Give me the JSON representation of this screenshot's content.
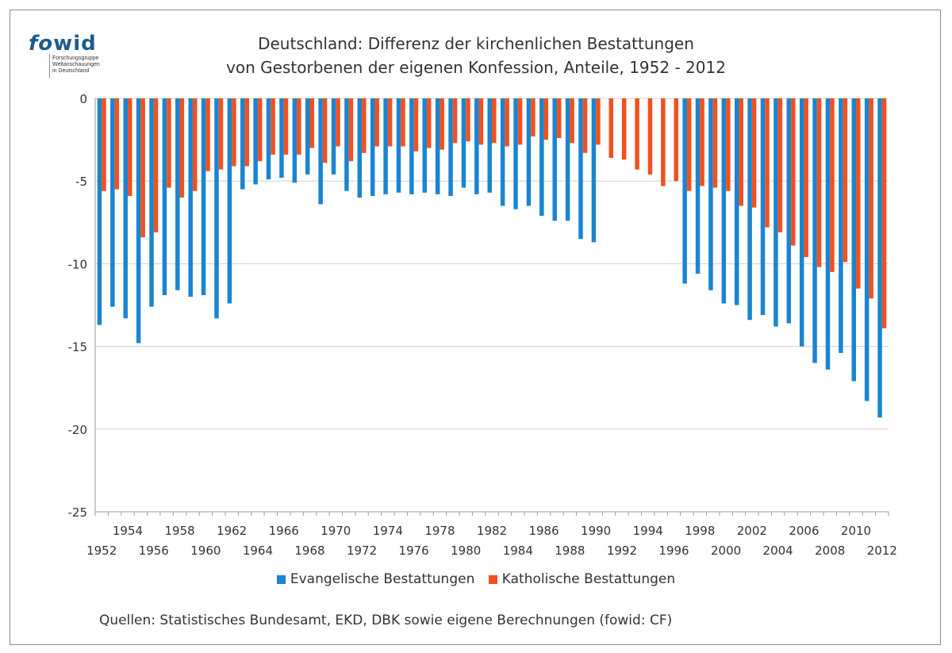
{
  "logo": {
    "word_part1": "fo",
    "word_part2": "wid",
    "subtitle": [
      "Forschungsgruppe",
      "Weltanschauungen",
      "in Deutschland"
    ]
  },
  "chart_data": {
    "type": "bar",
    "title": [
      "Deutschland: Differenz der kirchenlichen Bestattungen",
      "von Gestorbenen der eigenen Konfession, Anteile, 1952 - 2012"
    ],
    "xlabel": "",
    "ylabel": "",
    "ylim": [
      -25,
      0
    ],
    "yticks": [
      0,
      -5,
      -10,
      -15,
      -20,
      -25
    ],
    "grid": true,
    "legend_position": "bottom",
    "categories": [
      1952,
      1953,
      1954,
      1955,
      1956,
      1957,
      1958,
      1959,
      1960,
      1961,
      1962,
      1963,
      1964,
      1965,
      1966,
      1967,
      1968,
      1969,
      1970,
      1971,
      1972,
      1973,
      1974,
      1975,
      1976,
      1977,
      1978,
      1979,
      1980,
      1981,
      1982,
      1983,
      1984,
      1985,
      1986,
      1987,
      1988,
      1989,
      1990,
      1991,
      1992,
      1993,
      1994,
      1995,
      1996,
      1997,
      1998,
      1999,
      2000,
      2001,
      2002,
      2003,
      2004,
      2005,
      2006,
      2007,
      2008,
      2009,
      2010,
      2011,
      2012
    ],
    "series": [
      {
        "name": "Evangelische Bestattungen",
        "color": "#1a85d0",
        "values": [
          -13.7,
          -12.6,
          -13.3,
          -14.8,
          -12.6,
          -11.9,
          -11.6,
          -12.0,
          -11.9,
          -13.3,
          -12.4,
          -5.5,
          -5.2,
          -4.9,
          -4.8,
          -5.1,
          -4.6,
          -6.4,
          -4.6,
          -5.6,
          -6.0,
          -5.9,
          -5.8,
          -5.7,
          -5.8,
          -5.7,
          -5.8,
          -5.9,
          -5.4,
          -5.8,
          -5.7,
          -6.5,
          -6.7,
          -6.5,
          -7.1,
          -7.4,
          -7.4,
          -8.5,
          -8.7,
          null,
          null,
          null,
          null,
          null,
          null,
          -11.2,
          -10.6,
          -11.6,
          -12.4,
          -12.5,
          -13.4,
          -13.1,
          -13.8,
          -13.6,
          -15.0,
          -16.0,
          -16.4,
          -15.4,
          -17.1,
          -18.3,
          -19.3
        ]
      },
      {
        "name": "Katholische Bestattungen",
        "color": "#f2501f",
        "values": [
          -5.6,
          -5.5,
          -5.9,
          -8.4,
          -8.1,
          -5.4,
          -6.0,
          -5.6,
          -4.4,
          -4.3,
          -4.1,
          -4.1,
          -3.8,
          -3.4,
          -3.4,
          -3.4,
          -3.0,
          -3.9,
          -2.9,
          -3.8,
          -3.3,
          -2.9,
          -2.9,
          -2.9,
          -3.2,
          -3.0,
          -3.1,
          -2.7,
          -2.6,
          -2.8,
          -2.7,
          -2.9,
          -2.8,
          -2.3,
          -2.5,
          -2.4,
          -2.7,
          -3.3,
          -2.8,
          -3.6,
          -3.7,
          -4.3,
          -4.6,
          -5.3,
          -5.0,
          -5.6,
          -5.3,
          -5.4,
          -5.6,
          -6.5,
          -6.6,
          -7.8,
          -8.1,
          -8.9,
          -9.6,
          -10.2,
          -10.5,
          -9.9,
          -11.5,
          -12.1,
          -13.9
        ]
      }
    ],
    "tick_labels_upper": [
      "1954",
      "1958",
      "1962",
      "1966",
      "1970",
      "1974",
      "1978",
      "1982",
      "1986",
      "1990",
      "1994",
      "1998",
      "2002",
      "2006",
      "2010"
    ],
    "tick_labels_lower": [
      "1952",
      "1956",
      "1960",
      "1964",
      "1968",
      "1972",
      "1976",
      "1980",
      "1984",
      "1988",
      "1992",
      "1996",
      "2000",
      "2004",
      "2008",
      "2012"
    ],
    "ytick_labels": [
      "0",
      "-5",
      "-10",
      "-15",
      "-20",
      "-25"
    ]
  },
  "source": "Quellen: Statistisches Bundesamt, EKD, DBK sowie eigene Berechnungen (fowid: CF)"
}
